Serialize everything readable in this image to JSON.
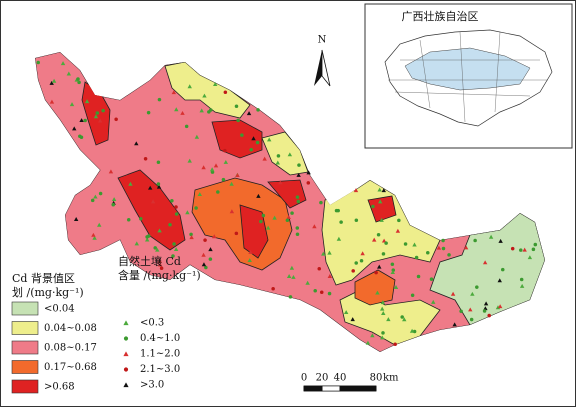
{
  "inset": {
    "title": "广西壮族自治区"
  },
  "north_arrow": {
    "label": "N"
  },
  "legend_zones": {
    "title_lines": [
      "Cd 背景值区",
      "划 /(mg·kg⁻¹)"
    ],
    "items": [
      {
        "label": "<0.04",
        "color": "#c6e2b4"
      },
      {
        "label": "0.04~0.08",
        "color": "#eeee8c"
      },
      {
        "label": "0.08~0.17",
        "color": "#ef7b88"
      },
      {
        "label": "0.17~0.68",
        "color": "#f26a2c"
      },
      {
        "label": ">0.68",
        "color": "#df2222"
      }
    ]
  },
  "legend_points": {
    "title_lines": [
      "自然土壤 Cd",
      "含量 /(mg·kg⁻¹)"
    ],
    "items": [
      {
        "label": "<0.3",
        "color": "#4caa3c",
        "shape": "triangle"
      },
      {
        "label": "0.4~1.0",
        "color": "#3c9a30",
        "shape": "circle"
      },
      {
        "label": "1.1~2.0",
        "color": "#d83030",
        "shape": "triangle"
      },
      {
        "label": "2.1~3.0",
        "color": "#c01818",
        "shape": "circle"
      },
      {
        "label": ">3.0",
        "color": "#111111",
        "shape": "triangle"
      }
    ]
  },
  "scale_bar": {
    "ticks": [
      0,
      20,
      40,
      80
    ],
    "unit": "km"
  }
}
